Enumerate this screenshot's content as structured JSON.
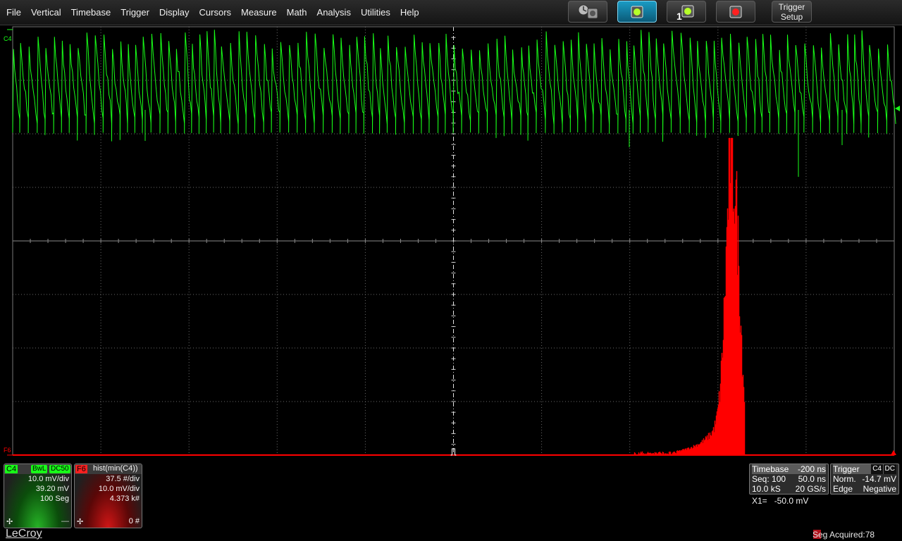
{
  "menu": [
    "File",
    "Vertical",
    "Timebase",
    "Trigger",
    "Display",
    "Cursors",
    "Measure",
    "Math",
    "Analysis",
    "Utilities",
    "Help"
  ],
  "toolbar": {
    "auto_setup_icon": "auto-setup-icon",
    "normal_icon": "normal-trigger-icon",
    "single_icon": "single-trigger-icon",
    "single_count": "1",
    "stop_icon": "stop-trigger-icon",
    "trigger_setup_label": [
      "Trigger",
      "Setup"
    ]
  },
  "colors": {
    "c4": "#18ff18",
    "f6": "#ff0000",
    "grid": "#6a6a6a"
  },
  "grid_labels": {
    "c4_marker": "C4",
    "f6_marker": "F6"
  },
  "c4": {
    "tag": "C4",
    "chips": [
      "BwL",
      "DC50"
    ],
    "lines": [
      "10.0 mV/div",
      "39.20 mV",
      "100 Seg"
    ]
  },
  "f6": {
    "tag": "F6",
    "title": "hist(min(C4))",
    "lines": [
      "37.5 #/div",
      "10.0 mV/div",
      "4.373 k#"
    ],
    "footer": "0 #"
  },
  "timebase": {
    "label": "Timebase",
    "delay": "-200 ns",
    "rows": [
      [
        "Seq: 100",
        "50.0 ns"
      ],
      [
        "10.0 kS",
        "20 GS/s"
      ]
    ]
  },
  "trigger": {
    "label": "Trigger",
    "chips": [
      "C4",
      "DC"
    ],
    "rows": [
      [
        "Norm.",
        "-14.7 mV"
      ],
      [
        "Edge",
        "Negative"
      ]
    ]
  },
  "cursor_readout": "X1=   -50.0 mV",
  "brand": "LeCroy",
  "seg_acquired": "Seg Acquired:78"
}
